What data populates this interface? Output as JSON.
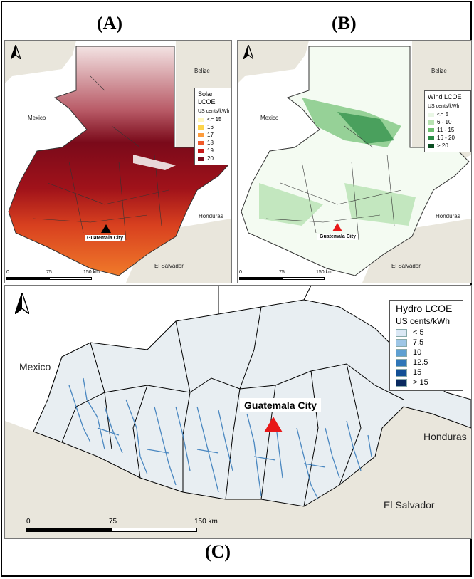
{
  "panels": {
    "a": {
      "label": "(A)",
      "countries": {
        "belize": "Belize",
        "mexico": "Mexico",
        "honduras": "Honduras",
        "el_salvador": "El Salvador"
      },
      "legend": {
        "title": "Solar LCOE",
        "unit": "US cents/kWh",
        "items": [
          {
            "label": "<= 15",
            "color": "#fff7bc"
          },
          {
            "label": "16",
            "color": "#fdd44a"
          },
          {
            "label": "17",
            "color": "#fd9b3c"
          },
          {
            "label": "18",
            "color": "#f05a2a"
          },
          {
            "label": "19",
            "color": "#c81a1a"
          },
          {
            "label": "20",
            "color": "#7a0a1a"
          }
        ]
      },
      "city": "Guatemala City",
      "scale": {
        "t0": "0",
        "t1": "75",
        "t2": "150 km"
      }
    },
    "b": {
      "label": "(B)",
      "countries": {
        "belize": "Belize",
        "mexico": "Mexico",
        "honduras": "Honduras",
        "el_salvador": "El Salvador"
      },
      "legend": {
        "title": "Wind LCOE",
        "unit": "US cents/kWh",
        "items": [
          {
            "label": "<= 5",
            "color": "#eaf7e6"
          },
          {
            "label": "6 - 10",
            "color": "#b7e2b1"
          },
          {
            "label": "11 - 15",
            "color": "#6dbf71"
          },
          {
            "label": "16 - 20",
            "color": "#2a8b45"
          },
          {
            "label": "> 20",
            "color": "#0b4d22"
          }
        ]
      },
      "city": "Guatemala City",
      "scale": {
        "t0": "0",
        "t1": "75",
        "t2": "150 km"
      }
    },
    "c": {
      "label": "(C)",
      "countries": {
        "mexico": "Mexico",
        "honduras": "Honduras",
        "el_salvador": "El Salvador"
      },
      "legend": {
        "title": "Hydro LCOE",
        "unit": "US cents/kWh",
        "items": [
          {
            "label": "< 5",
            "color": "#dbe8f5"
          },
          {
            "label": "7.5",
            "color": "#9ec6e6"
          },
          {
            "label": "10",
            "color": "#5fa0d2"
          },
          {
            "label": "12.5",
            "color": "#2f76b8"
          },
          {
            "label": "15",
            "color": "#134f95"
          },
          {
            "label": "> 15",
            "color": "#0a2a60"
          }
        ]
      },
      "city": "Guatemala City",
      "scale": {
        "t0": "0",
        "t1": "75",
        "t2": "150 km"
      }
    }
  }
}
